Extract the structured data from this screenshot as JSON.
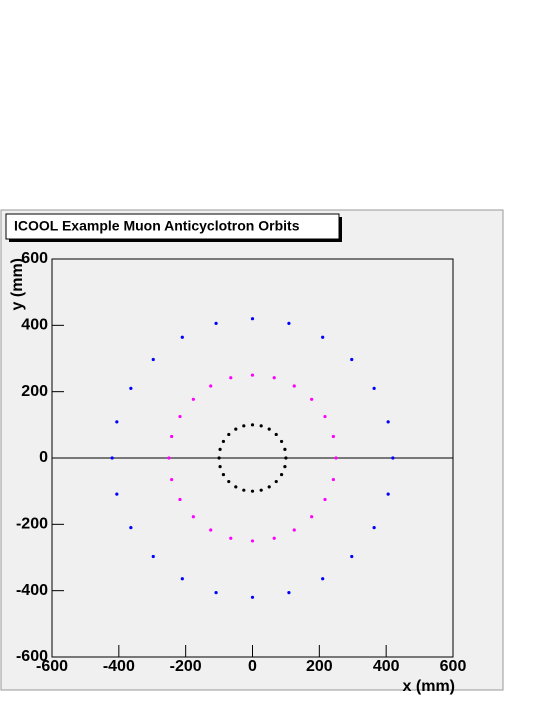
{
  "chart_data": {
    "type": "scatter",
    "title": "ICOOL Example Muon Anticyclotron Orbits",
    "x_label": "x (mm)",
    "y_label": "y (mm)",
    "xlim": [
      -600,
      600
    ],
    "ylim": [
      -600,
      600
    ],
    "xticks": [
      -600,
      -400,
      -200,
      0,
      200,
      400,
      600
    ],
    "yticks": [
      -600,
      -400,
      -200,
      0,
      200,
      400,
      600
    ],
    "series": [
      {
        "color": "#000000",
        "x": [
          100,
          97,
          87,
          71,
          50,
          26,
          0,
          -26,
          -50,
          -71,
          -87,
          -97,
          -100,
          -97,
          -87,
          -71,
          -50,
          -26,
          0,
          26,
          50,
          71,
          87,
          97
        ],
        "y": [
          0,
          26,
          50,
          71,
          87,
          97,
          100,
          97,
          87,
          71,
          50,
          26,
          0,
          -26,
          -50,
          -71,
          -87,
          -97,
          -100,
          -97,
          -87,
          -71,
          -50,
          -26
        ]
      },
      {
        "color": "#ff00ff",
        "x": [
          250,
          242,
          217,
          177,
          125,
          65,
          0,
          -65,
          -125,
          -177,
          -217,
          -242,
          -250,
          -242,
          -217,
          -177,
          -125,
          -65,
          0,
          65,
          125,
          177,
          217,
          242
        ],
        "y": [
          0,
          65,
          125,
          177,
          217,
          242,
          250,
          242,
          217,
          177,
          125,
          65,
          0,
          -65,
          -125,
          -177,
          -217,
          -242,
          -250,
          -242,
          -217,
          -177,
          -125,
          -65
        ]
      },
      {
        "color": "#0000ff",
        "x": [
          420,
          406,
          364,
          297,
          210,
          109,
          0,
          -109,
          -210,
          -297,
          -364,
          -406,
          -420,
          -406,
          -364,
          -297,
          -210,
          -109,
          0,
          109,
          210,
          297,
          364,
          406
        ],
        "y": [
          0,
          109,
          210,
          297,
          364,
          406,
          420,
          406,
          364,
          297,
          210,
          109,
          0,
          -109,
          -210,
          -297,
          -364,
          -406,
          -420,
          -406,
          -364,
          -297,
          -210,
          -109
        ]
      }
    ]
  }
}
